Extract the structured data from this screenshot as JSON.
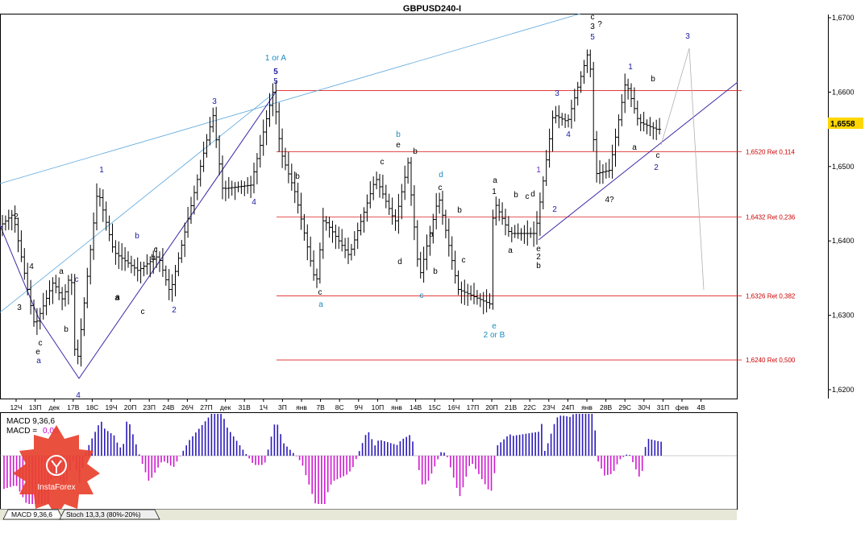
{
  "chart_data": {
    "type": "candlestick",
    "title": "GBPUSD240-I",
    "ylim": [
      1.6185,
      1.6715
    ],
    "y_ticks": [
      "1,6700",
      "1,6600",
      "1,6500",
      "1,6400",
      "1,6300",
      "1,6200"
    ],
    "current_price": "1,6558",
    "x_ticks": [
      "12Ч",
      "13П",
      "дек",
      "17В",
      "18С",
      "19Ч",
      "20П",
      "23П",
      "24В",
      "26Ч",
      "27П",
      "дек",
      "31В",
      "1Ч",
      "3П",
      "янв",
      "7В",
      "8С",
      "9Ч",
      "10П",
      "янв",
      "14В",
      "15С",
      "16Ч",
      "17П",
      "20П",
      "21В",
      "22С",
      "23Ч",
      "24П",
      "янв",
      "28В",
      "29С",
      "30Ч",
      "31П",
      "фев",
      "4В"
    ],
    "fib_levels": [
      {
        "value": 1.652,
        "label": "1,6520 Ret 0,114"
      },
      {
        "value": 1.6432,
        "label": "1,6432 Ret 0,236"
      },
      {
        "value": 1.6326,
        "label": "1,6326 Ret 0,382"
      },
      {
        "value": 1.624,
        "label": "1,6240 Ret 0,500"
      }
    ],
    "top_level": 1.6602,
    "wave_labels": [
      {
        "text": "1 or A",
        "color": "#1a8cc0"
      },
      {
        "text": "5",
        "color": "#1a1aa0"
      },
      {
        "text": "5",
        "color": "#1a1aa0"
      },
      {
        "text": "3",
        "color": "#1a1aa0"
      },
      {
        "text": "1",
        "color": "#1a1aa0"
      },
      {
        "text": "4",
        "color": "#1a1aa0"
      },
      {
        "text": "b",
        "color": "#1a1aa0"
      },
      {
        "text": "c",
        "color": "#000000"
      },
      {
        "text": "c",
        "color": "#1a1aa0"
      },
      {
        "text": "4",
        "color": "#1a1aa0"
      },
      {
        "text": "a",
        "color": "#1a1aa0"
      },
      {
        "text": "5",
        "color": "#000000"
      },
      {
        "text": "2",
        "color": "#000000"
      },
      {
        "text": "3",
        "color": "#000000"
      },
      {
        "text": "4",
        "color": "#000000"
      },
      {
        "text": "a",
        "color": "#000000"
      },
      {
        "text": "b",
        "color": "#000000"
      },
      {
        "text": "c",
        "color": "#000000"
      },
      {
        "text": "a",
        "color": "#000000"
      },
      {
        "text": "e",
        "color": "#000000"
      },
      {
        "text": "2",
        "color": "#1a1aa0"
      },
      {
        "text": "b",
        "color": "#000000"
      },
      {
        "text": "a",
        "color": "#000000"
      },
      {
        "text": "c",
        "color": "#000000"
      },
      {
        "text": "a",
        "color": "#1a8cc0"
      },
      {
        "text": "b",
        "color": "#000000"
      },
      {
        "text": "c",
        "color": "#000000"
      },
      {
        "text": "b",
        "color": "#1a8cc0"
      },
      {
        "text": "e",
        "color": "#000000"
      },
      {
        "text": "b",
        "color": "#000000"
      },
      {
        "text": "c",
        "color": "#000000"
      },
      {
        "text": "d",
        "color": "#000000"
      },
      {
        "text": "c",
        "color": "#1a8cc0"
      },
      {
        "text": "d",
        "color": "#1a8cc0"
      },
      {
        "text": "c",
        "color": "#000000"
      },
      {
        "text": "b",
        "color": "#000000"
      },
      {
        "text": "a",
        "color": "#000000"
      },
      {
        "text": "b",
        "color": "#000000"
      },
      {
        "text": "c",
        "color": "#000000"
      },
      {
        "text": "e",
        "color": "#1a8cc0"
      },
      {
        "text": "2 or B",
        "color": "#1a8cc0"
      },
      {
        "text": "a",
        "color": "#000000"
      },
      {
        "text": "1",
        "color": "#000000"
      },
      {
        "text": "a",
        "color": "#000000"
      },
      {
        "text": "b",
        "color": "#000000"
      },
      {
        "text": "c",
        "color": "#000000"
      },
      {
        "text": "d",
        "color": "#000000"
      },
      {
        "text": "e",
        "color": "#000000"
      },
      {
        "text": "2",
        "color": "#000000"
      },
      {
        "text": "b",
        "color": "#000000"
      },
      {
        "text": "1",
        "color": "#6a2ec0"
      },
      {
        "text": "2",
        "color": "#1a1aa0"
      },
      {
        "text": "3",
        "color": "#1a1aa0"
      },
      {
        "text": "4",
        "color": "#1a1aa0"
      },
      {
        "text": "c",
        "color": "#000000"
      },
      {
        "text": "3",
        "color": "#000000"
      },
      {
        "text": "?",
        "color": "#000000"
      },
      {
        "text": "5",
        "color": "#1a1aa0"
      },
      {
        "text": "4?",
        "color": "#000000"
      },
      {
        "text": "1",
        "color": "#1a1aa0"
      },
      {
        "text": "a",
        "color": "#000000"
      },
      {
        "text": "b",
        "color": "#000000"
      },
      {
        "text": "c",
        "color": "#000000"
      },
      {
        "text": "2",
        "color": "#1a1aa0"
      },
      {
        "text": "3",
        "color": "#1a1aa0"
      }
    ]
  },
  "indicator": {
    "macd_label": "MACD 9,36,6",
    "macd_eq_label": "MACD =",
    "macd_value": "0,00",
    "macd_value_color": "#cc00cc"
  },
  "tabs": [
    "MACD 9,36,6",
    "Stoch 13,3,3 (80%-20%)"
  ],
  "logo": {
    "text": "InstaForex",
    "color": "#e8412e"
  },
  "colors": {
    "fib": "#dd2222",
    "wave_blue": "#1a1aa0",
    "trend_light": "#5aa6dd",
    "hist_pos": "#2a1ab8",
    "hist_neg": "#d01ad0"
  }
}
